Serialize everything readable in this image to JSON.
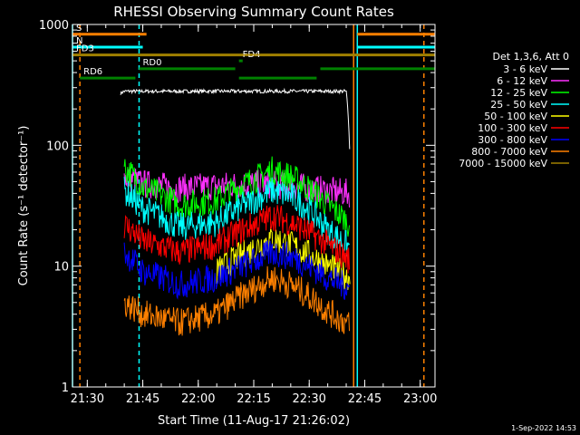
{
  "chart_data": {
    "type": "line",
    "title": "RHESSI Observing Summary Count Rates",
    "xlabel": "Start Time (11-Aug-17 21:26:02)",
    "ylabel": "Count Rate (s⁻¹ detector⁻¹)",
    "ylog": true,
    "ylim": [
      1,
      1000
    ],
    "xlim": [
      "21:26",
      "23:04"
    ],
    "x_ticks": [
      "21:30",
      "21:45",
      "22:00",
      "22:15",
      "22:30",
      "22:45",
      "23:00"
    ],
    "y_ticks": [
      "1",
      "10",
      "100",
      "1000"
    ],
    "grid": false,
    "legend_position": "right",
    "legend_title": "Det 1,3,6, Att 0",
    "series": [
      {
        "name": "3 - 6 keV",
        "color": "#ffffff",
        "x": [
          "21:39",
          "21:40",
          "21:45",
          "22:00",
          "22:10",
          "22:15",
          "22:20",
          "22:30",
          "22:40",
          "22:41"
        ],
        "values": [
          270,
          280,
          280,
          280,
          280,
          280,
          280,
          280,
          280,
          80
        ]
      },
      {
        "name": "6 - 12 keV",
        "color": "#ff30ff",
        "x": [
          "21:40",
          "21:45",
          "21:55",
          "22:05",
          "22:15",
          "22:25",
          "22:35",
          "22:41"
        ],
        "values": [
          55,
          48,
          44,
          46,
          48,
          46,
          42,
          40
        ]
      },
      {
        "name": "12 - 25 keV",
        "color": "#00ff00",
        "x": [
          "21:40",
          "21:45",
          "21:55",
          "22:05",
          "22:15",
          "22:20",
          "22:25",
          "22:35",
          "22:41"
        ],
        "values": [
          65,
          45,
          32,
          35,
          52,
          62,
          55,
          32,
          22
        ]
      },
      {
        "name": "25 - 50 keV",
        "color": "#00ffff",
        "x": [
          "21:40",
          "21:45",
          "21:55",
          "22:05",
          "22:15",
          "22:20",
          "22:25",
          "22:35",
          "22:41"
        ],
        "values": [
          42,
          30,
          21,
          23,
          35,
          42,
          38,
          20,
          14
        ]
      },
      {
        "name": "50 - 100 keV",
        "color": "#ffff00",
        "x": [
          "22:05",
          "22:15",
          "22:20",
          "22:25",
          "22:35",
          "22:41"
        ],
        "values": [
          9,
          14,
          17,
          15,
          10,
          8
        ]
      },
      {
        "name": "100 - 300 keV",
        "color": "#ff0000",
        "x": [
          "21:40",
          "21:45",
          "21:55",
          "22:05",
          "22:15",
          "22:20",
          "22:25",
          "22:35",
          "22:41"
        ],
        "values": [
          22,
          16,
          13,
          15,
          22,
          26,
          23,
          15,
          11
        ]
      },
      {
        "name": "300 - 800 keV",
        "color": "#0000ff",
        "x": [
          "21:40",
          "21:45",
          "21:55",
          "22:05",
          "22:15",
          "22:20",
          "22:25",
          "22:35",
          "22:41"
        ],
        "values": [
          13,
          9,
          7,
          8,
          11,
          13,
          12,
          8,
          6.5
        ]
      },
      {
        "name": "800 - 7000 keV",
        "color": "#ff8000",
        "x": [
          "21:40",
          "21:45",
          "21:55",
          "22:05",
          "22:15",
          "22:20",
          "22:25",
          "22:35",
          "22:41"
        ],
        "values": [
          5,
          4,
          3.4,
          4,
          6.5,
          8,
          7,
          4.2,
          3.2
        ]
      },
      {
        "name": "7000 - 15000 keV",
        "color": "#a08000",
        "x": [
          "21:26",
          "23:04"
        ],
        "values": [
          560,
          560
        ]
      }
    ],
    "flag_bars": [
      {
        "label": "S",
        "color": "#ff8000",
        "y": 830,
        "segments": [
          [
            "21:26",
            "21:46"
          ],
          [
            "22:43",
            "23:04"
          ]
        ]
      },
      {
        "label": "N",
        "color": "#00ffff",
        "y": 650,
        "segments": [
          [
            "21:26",
            "21:45"
          ],
          [
            "22:43",
            "23:04"
          ]
        ]
      },
      {
        "label": "FD3",
        "color": "#a08000",
        "y": 560,
        "segments": [
          [
            "21:26",
            "23:04"
          ]
        ]
      },
      {
        "label": "FD4",
        "color": "#008000",
        "y": 500,
        "segments": [
          [
            "22:11",
            "22:12"
          ]
        ]
      },
      {
        "label": "RD0",
        "color": "#008000",
        "y": 430,
        "segments": [
          [
            "21:44",
            "22:10"
          ],
          [
            "22:33",
            "23:04"
          ]
        ]
      },
      {
        "label": "RD6",
        "color": "#008000",
        "y": 360,
        "segments": [
          [
            "21:28",
            "21:43"
          ],
          [
            "22:11",
            "22:32"
          ]
        ]
      }
    ],
    "vertical_markers": [
      {
        "x": "21:26",
        "color": "#00ffff",
        "dashed": false
      },
      {
        "x": "21:28",
        "color": "#ff8000",
        "dashed": true
      },
      {
        "x": "21:44",
        "color": "#00ffff",
        "dashed": true
      },
      {
        "x": "22:42",
        "color": "#ff8000",
        "dashed": false
      },
      {
        "x": "22:43",
        "color": "#00ffff",
        "dashed": false
      },
      {
        "x": "23:01",
        "color": "#ff8000",
        "dashed": true
      }
    ]
  },
  "timestamp": "1-Sep-2022 14:53"
}
